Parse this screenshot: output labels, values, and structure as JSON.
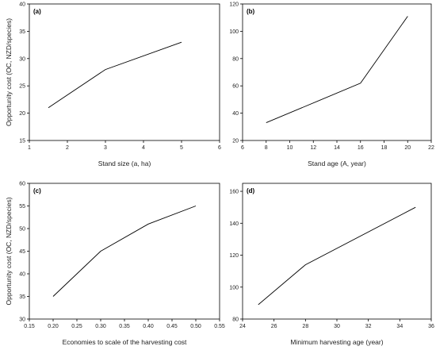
{
  "chart_data": [
    {
      "type": "line",
      "panel_label": "(a)",
      "xlabel": "Stand size (a, ha)",
      "ylabel": "Opportunity cost (OC, NZD/species)",
      "xlim": [
        1,
        6
      ],
      "ylim": [
        15,
        40
      ],
      "xticks": [
        1,
        2,
        3,
        4,
        5,
        6
      ],
      "yticks": [
        15,
        20,
        25,
        30,
        35,
        40
      ],
      "grid": false,
      "series": [
        {
          "x": [
            1.5,
            3,
            5
          ],
          "y": [
            21,
            28,
            33
          ]
        }
      ]
    },
    {
      "type": "line",
      "panel_label": "(b)",
      "xlabel": "Stand age (A, year)",
      "ylabel": "",
      "xlim": [
        6,
        22
      ],
      "ylim": [
        20,
        120
      ],
      "xticks": [
        6,
        8,
        10,
        12,
        14,
        16,
        18,
        20,
        22
      ],
      "yticks": [
        20,
        40,
        60,
        80,
        100,
        120
      ],
      "grid": false,
      "series": [
        {
          "x": [
            8,
            16,
            20
          ],
          "y": [
            33,
            62,
            111
          ]
        }
      ]
    },
    {
      "type": "line",
      "panel_label": "(c)",
      "xlabel": "Economies to scale of the harvesting cost",
      "ylabel": "Opportunity cost (OC, NZD/species)",
      "xlim": [
        0.15,
        0.55
      ],
      "ylim": [
        30,
        60
      ],
      "xticks": [
        "0.15",
        "0.20",
        "0.25",
        "0.30",
        "0.35",
        "0.40",
        "0.45",
        "0.50",
        "0.55"
      ],
      "yticks": [
        30,
        35,
        40,
        45,
        50,
        55,
        60
      ],
      "grid": false,
      "series": [
        {
          "x": [
            0.2,
            0.3,
            0.4,
            0.5
          ],
          "y": [
            35,
            45,
            51,
            55
          ]
        }
      ]
    },
    {
      "type": "line",
      "panel_label": "(d)",
      "xlabel": "Minimum harvesting age (year)",
      "ylabel": "",
      "xlim": [
        24,
        36
      ],
      "ylim": [
        80,
        165
      ],
      "xticks": [
        24,
        26,
        28,
        30,
        32,
        34,
        36
      ],
      "yticks": [
        80,
        100,
        120,
        140,
        160
      ],
      "grid": false,
      "series": [
        {
          "x": [
            25,
            28,
            35
          ],
          "y": [
            89,
            114,
            150
          ]
        }
      ]
    }
  ]
}
